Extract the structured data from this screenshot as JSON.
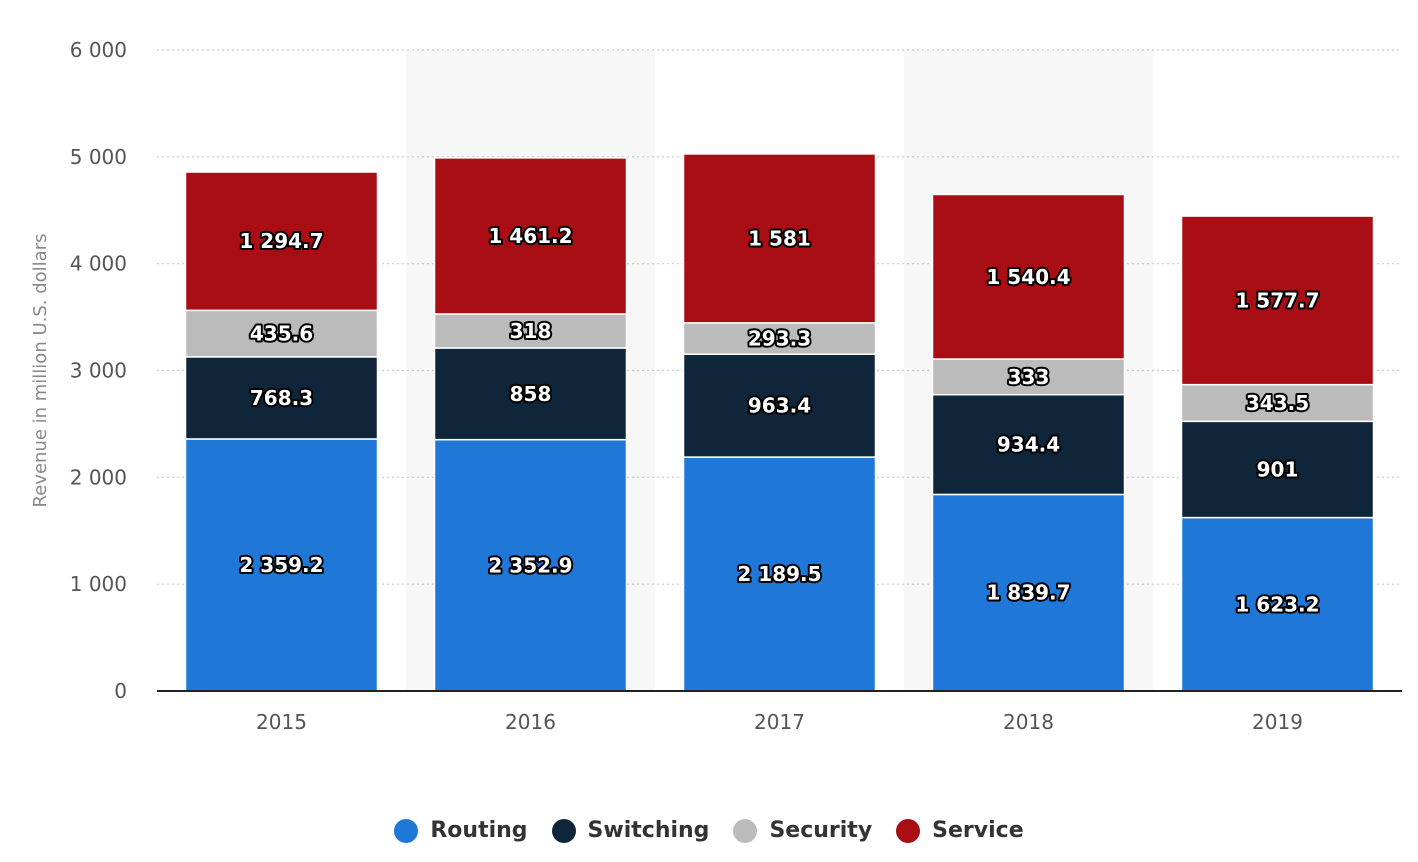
{
  "chart_data": {
    "type": "bar",
    "stacked": true,
    "categories": [
      "2015",
      "2016",
      "2017",
      "2018",
      "2019"
    ],
    "series": [
      {
        "name": "Routing",
        "color": "#1f77d8",
        "values": [
          2359.2,
          2352.9,
          2189.5,
          1839.7,
          1623.2
        ],
        "labels": [
          "2 359.2",
          "2 352.9",
          "2 189.5",
          "1 839.7",
          "1 623.2"
        ]
      },
      {
        "name": "Switching",
        "color": "#0f253a",
        "values": [
          768.3,
          858,
          963.4,
          934.4,
          901
        ],
        "labels": [
          "768.3",
          "858",
          "963.4",
          "934.4",
          "901"
        ]
      },
      {
        "name": "Security",
        "color": "#bbbbbb",
        "values": [
          435.6,
          318,
          293.3,
          333,
          343.5
        ],
        "labels": [
          "435.6",
          "318",
          "293.3",
          "333",
          "343.5"
        ]
      },
      {
        "name": "Service",
        "color": "#a80e14",
        "values": [
          1294.7,
          1461.2,
          1581,
          1540.4,
          1577.7
        ],
        "labels": [
          "1 294.7",
          "1 461.2",
          "1 581",
          "1 540.4",
          "1 577.7"
        ]
      }
    ],
    "ylabel": "Revenue in million U.S. dollars",
    "ylim": [
      0,
      6000
    ],
    "yticks": [
      0,
      1000,
      2000,
      3000,
      4000,
      5000,
      6000
    ],
    "ytick_labels": [
      "0",
      "1 000",
      "2 000",
      "3 000",
      "4 000",
      "5 000",
      "6 000"
    ],
    "grid": true,
    "legend_position": "bottom-center"
  }
}
